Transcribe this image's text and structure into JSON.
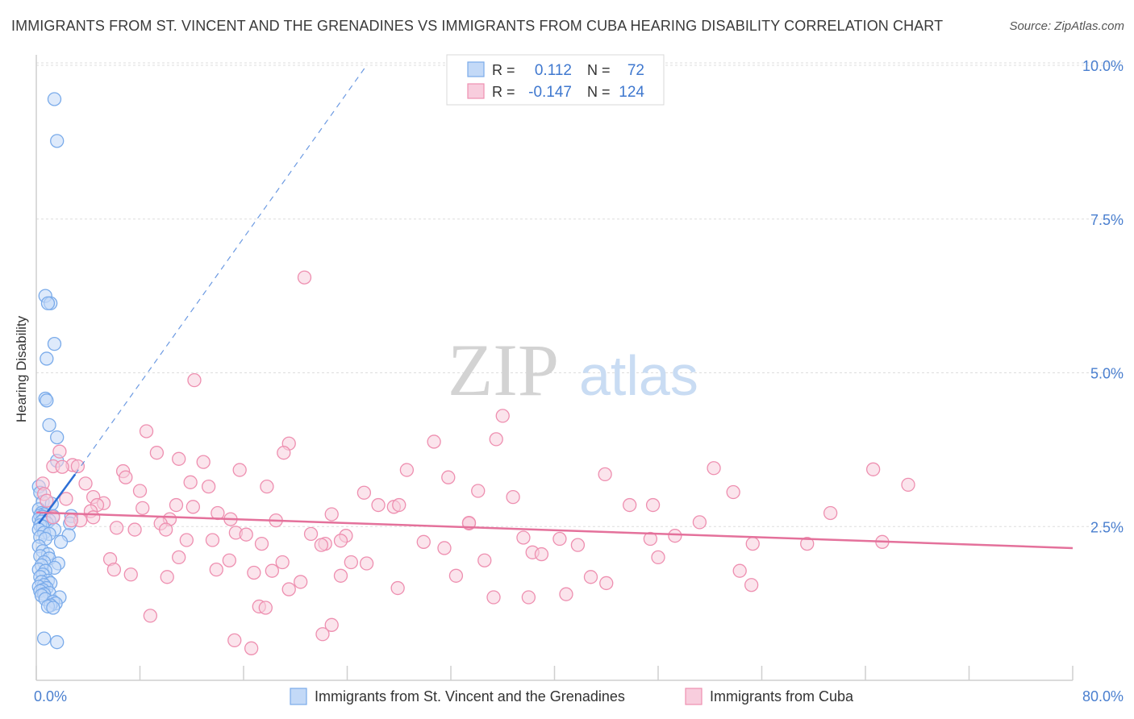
{
  "title": "IMMIGRANTS FROM ST. VINCENT AND THE GRENADINES VS IMMIGRANTS FROM CUBA HEARING DISABILITY CORRELATION CHART",
  "source": "Source: ZipAtlas.com",
  "watermark": {
    "zip": "ZIP",
    "atlas": "atlas"
  },
  "colors": {
    "blue": "#7aabea",
    "blue_fill": "#c3d9f7",
    "blue_line": "#2d6fd6",
    "pink": "#ee8fb0",
    "pink_fill": "#f8cddd",
    "pink_line": "#e4719b",
    "axis_label": "#4a7fcf",
    "grid": "#dedede"
  },
  "legend": {
    "rows": [
      {
        "r_label": "R =",
        "r_value": "0.112",
        "n_label": "N =",
        "n_value": "72"
      },
      {
        "r_label": "R =",
        "r_value": "-0.147",
        "n_label": "N =",
        "n_value": "124"
      }
    ]
  },
  "chart_data": {
    "type": "scatter",
    "title": "IMMIGRANTS FROM ST. VINCENT AND THE GRENADINES VS IMMIGRANTS FROM CUBA HEARING DISABILITY CORRELATION CHART",
    "xlabel": "",
    "ylabel": "Hearing Disability",
    "xlim": [
      0,
      80
    ],
    "ylim": [
      0,
      10.5
    ],
    "x_tick_labels": [
      {
        "value": 0,
        "label": "0.0%"
      },
      {
        "value": 80,
        "label": "80.0%"
      }
    ],
    "y_tick_labels": [
      {
        "value": 2.5,
        "label": "2.5%"
      },
      {
        "value": 5.0,
        "label": "5.0%"
      },
      {
        "value": 7.5,
        "label": "7.5%"
      },
      {
        "value": 10.0,
        "label": "10.0%"
      }
    ],
    "legend_labels": [
      "Immigrants from St. Vincent and the Grenadines",
      "Immigrants from Cuba"
    ],
    "series": [
      {
        "name": "Immigrants from St. Vincent and the Grenadines",
        "color": "blue",
        "R": 0.112,
        "N": 72,
        "trend_solid": [
          [
            0.2,
            2.55
          ],
          [
            3.0,
            3.35
          ]
        ],
        "trend_dashed": [
          [
            3.0,
            3.35
          ],
          [
            25.5,
            10.0
          ]
        ],
        "points": [
          [
            1.4,
            9.45
          ],
          [
            1.6,
            8.77
          ],
          [
            0.7,
            6.25
          ],
          [
            1.1,
            6.13
          ],
          [
            0.9,
            6.13
          ],
          [
            1.4,
            5.47
          ],
          [
            0.8,
            5.23
          ],
          [
            0.7,
            4.58
          ],
          [
            0.8,
            4.55
          ],
          [
            1.0,
            4.15
          ],
          [
            1.6,
            3.95
          ],
          [
            1.6,
            3.57
          ],
          [
            0.2,
            3.15
          ],
          [
            0.3,
            3.05
          ],
          [
            0.5,
            2.9
          ],
          [
            1.2,
            2.87
          ],
          [
            0.2,
            2.78
          ],
          [
            0.4,
            2.72
          ],
          [
            0.6,
            2.7
          ],
          [
            0.3,
            2.68
          ],
          [
            0.5,
            2.66
          ],
          [
            1.3,
            2.67
          ],
          [
            2.7,
            2.67
          ],
          [
            0.2,
            2.62
          ],
          [
            0.6,
            2.62
          ],
          [
            1.0,
            2.6
          ],
          [
            0.4,
            2.58
          ],
          [
            0.8,
            2.56
          ],
          [
            2.6,
            2.55
          ],
          [
            0.3,
            2.52
          ],
          [
            0.5,
            2.5
          ],
          [
            0.2,
            2.45
          ],
          [
            1.4,
            2.45
          ],
          [
            0.6,
            2.4
          ],
          [
            1.0,
            2.38
          ],
          [
            2.5,
            2.36
          ],
          [
            0.3,
            2.33
          ],
          [
            0.7,
            2.3
          ],
          [
            1.9,
            2.25
          ],
          [
            0.2,
            2.18
          ],
          [
            0.5,
            2.1
          ],
          [
            0.9,
            2.05
          ],
          [
            0.3,
            2.02
          ],
          [
            1.0,
            1.98
          ],
          [
            0.6,
            1.92
          ],
          [
            1.7,
            1.9
          ],
          [
            0.4,
            1.87
          ],
          [
            1.4,
            1.83
          ],
          [
            0.2,
            1.8
          ],
          [
            0.7,
            1.78
          ],
          [
            0.5,
            1.72
          ],
          [
            0.3,
            1.68
          ],
          [
            0.9,
            1.62
          ],
          [
            0.4,
            1.6
          ],
          [
            1.1,
            1.58
          ],
          [
            0.6,
            1.55
          ],
          [
            0.2,
            1.52
          ],
          [
            0.8,
            1.5
          ],
          [
            0.5,
            1.47
          ],
          [
            0.3,
            1.45
          ],
          [
            1.0,
            1.42
          ],
          [
            0.6,
            1.4
          ],
          [
            0.4,
            1.38
          ],
          [
            1.8,
            1.35
          ],
          [
            0.7,
            1.32
          ],
          [
            1.3,
            1.28
          ],
          [
            1.5,
            1.25
          ],
          [
            1.1,
            1.22
          ],
          [
            0.9,
            1.2
          ],
          [
            1.3,
            1.18
          ],
          [
            0.6,
            0.68
          ],
          [
            1.6,
            0.62
          ]
        ]
      },
      {
        "name": "Immigrants from Cuba",
        "color": "pink",
        "R": -0.147,
        "N": 124,
        "trend_solid": [
          [
            0,
            2.73
          ],
          [
            80,
            2.15
          ]
        ],
        "points": [
          [
            20.7,
            6.55
          ],
          [
            12.2,
            4.88
          ],
          [
            36.0,
            4.3
          ],
          [
            35.5,
            3.92
          ],
          [
            30.7,
            3.88
          ],
          [
            19.5,
            3.85
          ],
          [
            8.5,
            4.05
          ],
          [
            19.1,
            3.7
          ],
          [
            9.3,
            3.7
          ],
          [
            11.0,
            3.6
          ],
          [
            1.8,
            3.72
          ],
          [
            12.9,
            3.55
          ],
          [
            2.8,
            3.5
          ],
          [
            1.3,
            3.48
          ],
          [
            2.0,
            3.47
          ],
          [
            3.2,
            3.48
          ],
          [
            15.7,
            3.42
          ],
          [
            28.6,
            3.42
          ],
          [
            52.3,
            3.45
          ],
          [
            64.6,
            3.43
          ],
          [
            6.7,
            3.4
          ],
          [
            6.9,
            3.3
          ],
          [
            43.9,
            3.35
          ],
          [
            31.8,
            3.3
          ],
          [
            0.5,
            3.2
          ],
          [
            3.8,
            3.2
          ],
          [
            11.9,
            3.22
          ],
          [
            17.8,
            3.15
          ],
          [
            13.3,
            3.15
          ],
          [
            67.3,
            3.18
          ],
          [
            25.3,
            3.05
          ],
          [
            34.1,
            3.08
          ],
          [
            53.8,
            3.06
          ],
          [
            0.6,
            3.03
          ],
          [
            8.0,
            3.08
          ],
          [
            36.8,
            2.98
          ],
          [
            4.4,
            2.98
          ],
          [
            2.3,
            2.95
          ],
          [
            0.8,
            2.92
          ],
          [
            26.4,
            2.85
          ],
          [
            45.8,
            2.85
          ],
          [
            5.2,
            2.88
          ],
          [
            10.8,
            2.85
          ],
          [
            12.1,
            2.82
          ],
          [
            47.6,
            2.85
          ],
          [
            27.6,
            2.82
          ],
          [
            4.7,
            2.85
          ],
          [
            8.2,
            2.8
          ],
          [
            4.2,
            2.75
          ],
          [
            28.0,
            2.85
          ],
          [
            14.0,
            2.72
          ],
          [
            22.8,
            2.7
          ],
          [
            61.3,
            2.72
          ],
          [
            4.4,
            2.65
          ],
          [
            1.3,
            2.65
          ],
          [
            10.3,
            2.62
          ],
          [
            15.0,
            2.62
          ],
          [
            33.4,
            2.55
          ],
          [
            51.2,
            2.57
          ],
          [
            3.4,
            2.6
          ],
          [
            18.5,
            2.6
          ],
          [
            9.6,
            2.55
          ],
          [
            6.2,
            2.48
          ],
          [
            7.6,
            2.45
          ],
          [
            10.0,
            2.45
          ],
          [
            15.4,
            2.4
          ],
          [
            21.2,
            2.38
          ],
          [
            33.4,
            2.56
          ],
          [
            23.9,
            2.35
          ],
          [
            2.7,
            2.6
          ],
          [
            40.4,
            2.3
          ],
          [
            49.3,
            2.35
          ],
          [
            47.4,
            2.3
          ],
          [
            37.6,
            2.32
          ],
          [
            22.3,
            2.22
          ],
          [
            11.6,
            2.28
          ],
          [
            13.6,
            2.28
          ],
          [
            16.2,
            2.37
          ],
          [
            23.5,
            2.27
          ],
          [
            29.9,
            2.25
          ],
          [
            17.4,
            2.22
          ],
          [
            55.3,
            2.22
          ],
          [
            59.5,
            2.22
          ],
          [
            65.3,
            2.25
          ],
          [
            31.5,
            2.15
          ],
          [
            41.8,
            2.2
          ],
          [
            22.0,
            2.2
          ],
          [
            38.3,
            2.08
          ],
          [
            39.0,
            2.05
          ],
          [
            48.0,
            2.0
          ],
          [
            11.0,
            2.0
          ],
          [
            5.7,
            1.97
          ],
          [
            14.9,
            1.95
          ],
          [
            19.0,
            1.92
          ],
          [
            24.3,
            1.92
          ],
          [
            25.5,
            1.9
          ],
          [
            34.6,
            1.95
          ],
          [
            6.0,
            1.8
          ],
          [
            13.9,
            1.8
          ],
          [
            18.2,
            1.78
          ],
          [
            7.3,
            1.72
          ],
          [
            16.8,
            1.75
          ],
          [
            10.1,
            1.68
          ],
          [
            23.5,
            1.7
          ],
          [
            32.4,
            1.7
          ],
          [
            42.8,
            1.68
          ],
          [
            54.3,
            1.78
          ],
          [
            20.4,
            1.6
          ],
          [
            44.0,
            1.58
          ],
          [
            55.2,
            1.55
          ],
          [
            19.5,
            1.48
          ],
          [
            27.9,
            1.5
          ],
          [
            35.3,
            1.35
          ],
          [
            38.0,
            1.35
          ],
          [
            40.9,
            1.4
          ],
          [
            17.2,
            1.2
          ],
          [
            17.7,
            1.18
          ],
          [
            8.8,
            1.05
          ],
          [
            22.8,
            0.9
          ],
          [
            22.1,
            0.75
          ],
          [
            15.3,
            0.65
          ],
          [
            16.6,
            0.52
          ]
        ]
      }
    ]
  }
}
